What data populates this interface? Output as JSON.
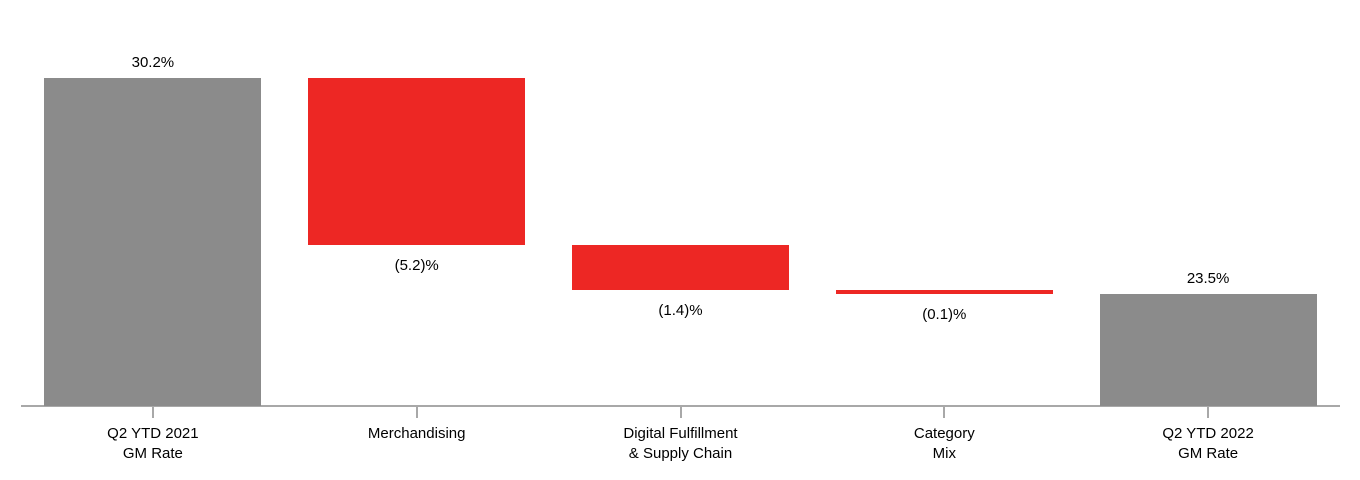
{
  "chart_data": {
    "type": "waterfall",
    "title": "",
    "categories": [
      "Q2 YTD 2021\nGM Rate",
      "Merchandising",
      "Digital Fulfillment\n& Supply Chain",
      "Category\nMix",
      "Q2 YTD 2022\nGM Rate"
    ],
    "values": [
      30.2,
      -5.2,
      -1.4,
      -0.1,
      23.5
    ],
    "bars": [
      {
        "category": "Q2 YTD 2021 GM Rate",
        "value": 30.2,
        "label": "30.2%",
        "label_position": "above",
        "start": 20.0,
        "end": 30.2,
        "role": "total"
      },
      {
        "category": "Merchandising",
        "value": -5.2,
        "label": "(5.2)%",
        "label_position": "below",
        "start": 30.2,
        "end": 25.0,
        "role": "decrease"
      },
      {
        "category": "Digital Fulfillment & Supply Chain",
        "value": -1.4,
        "label": "(1.4)%",
        "label_position": "below",
        "start": 25.0,
        "end": 23.6,
        "role": "decrease"
      },
      {
        "category": "Category Mix",
        "value": -0.1,
        "label": "(0.1)%",
        "label_position": "below",
        "start": 23.6,
        "end": 23.5,
        "role": "decrease"
      },
      {
        "category": "Q2 YTD 2022 GM Rate",
        "value": 23.5,
        "label": "23.5%",
        "label_position": "above",
        "start": 20.0,
        "end": 23.5,
        "role": "total"
      }
    ],
    "axis": {
      "baseline_value": 20.0,
      "top_value": 30.2,
      "y_axis_visible": false,
      "gridlines": false,
      "unit": "%"
    },
    "legend_position": "none",
    "colors": {
      "total_bar": "#8B8B8B",
      "decrease_bar": "#ED2724",
      "axis_line": "#A8A8A8",
      "label_text": "#000000",
      "background": "#FFFFFF"
    }
  }
}
